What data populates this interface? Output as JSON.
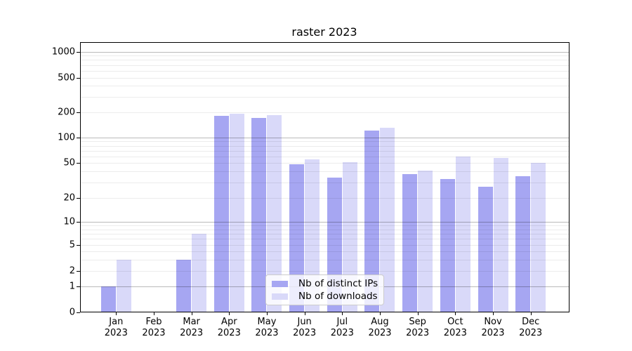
{
  "chart_data": {
    "type": "bar",
    "title": "raster 2023",
    "categories": [
      "Jan",
      "Feb",
      "Mar",
      "Apr",
      "May",
      "Jun",
      "Jul",
      "Aug",
      "Sep",
      "Oct",
      "Nov",
      "Dec"
    ],
    "year_label": "2023",
    "series": [
      {
        "name": "Nb of distinct IPs",
        "key": "distinct-ips",
        "color": "#a6a6f2",
        "values": [
          1,
          0,
          3,
          180,
          170,
          48,
          34,
          120,
          37,
          33,
          27,
          35
        ]
      },
      {
        "name": "Nb of downloads",
        "key": "downloads",
        "color": "#d9d9f9",
        "values": [
          3,
          0,
          7,
          190,
          183,
          55,
          51,
          130,
          41,
          60,
          57,
          50
        ]
      }
    ],
    "yscale": "symlog (linear 0-1, log above)",
    "ytick_values": [
      0,
      1,
      2,
      5,
      10,
      20,
      50,
      100,
      200,
      500,
      1000
    ],
    "ylim": [
      0,
      1200
    ],
    "grid": "horizontal major and minor gridlines",
    "legend_position": "lower center inside plot"
  },
  "colors": {
    "bar_distinct_ips": "#a6a6f2",
    "bar_downloads": "#d9d9f9",
    "grid_major": "#bababa",
    "grid_minor": "#ececec",
    "axis": "#000000",
    "legend_border": "#cccccc",
    "background": "#ffffff"
  }
}
